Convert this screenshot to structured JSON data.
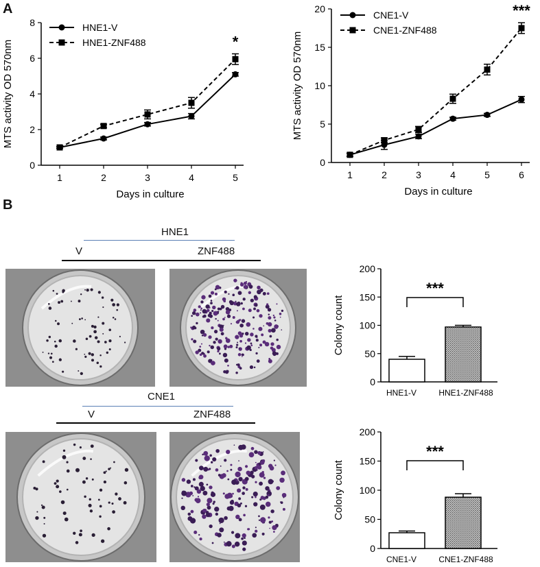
{
  "panels": {
    "a_label": "A",
    "b_label": "B"
  },
  "chart_data": [
    {
      "type": "line",
      "ylabel": "MTS activity OD 570nm",
      "xlabel": "Days in culture",
      "x": [
        1,
        2,
        3,
        4,
        5
      ],
      "xticks": [
        "1",
        "2",
        "3",
        "4",
        "5"
      ],
      "ylim": [
        0,
        8
      ],
      "yticks": [
        "0",
        "2",
        "4",
        "6",
        "8"
      ],
      "legend_position": "top-left",
      "series": [
        {
          "name": "HNE1-V",
          "marker": "circle",
          "dash": "solid",
          "values": [
            1.0,
            1.5,
            2.3,
            2.75,
            5.1
          ],
          "errors": [
            0.05,
            0.08,
            0.1,
            0.15,
            0.1
          ]
        },
        {
          "name": "HNE1-ZNF488",
          "marker": "square",
          "dash": "dashed",
          "values": [
            1.0,
            2.2,
            2.85,
            3.5,
            5.95
          ],
          "errors": [
            0.05,
            0.1,
            0.25,
            0.3,
            0.3
          ]
        }
      ],
      "significance": {
        "label": "*",
        "x": 5
      }
    },
    {
      "type": "line",
      "ylabel": "MTS activity OD 570nm",
      "xlabel": "Days in culture",
      "x": [
        1,
        2,
        3,
        4,
        5,
        6
      ],
      "xticks": [
        "1",
        "2",
        "3",
        "4",
        "5",
        "6"
      ],
      "ylim": [
        0,
        20
      ],
      "yticks": [
        "0",
        "5",
        "10",
        "15",
        "20"
      ],
      "legend_position": "top-left",
      "series": [
        {
          "name": "CNE1-V",
          "marker": "circle",
          "dash": "solid",
          "values": [
            1.0,
            2.3,
            3.4,
            5.7,
            6.2,
            8.2
          ],
          "errors": [
            0.2,
            0.6,
            0.3,
            0.2,
            0.2,
            0.4
          ]
        },
        {
          "name": "CNE1-ZNF488",
          "marker": "square",
          "dash": "dashed",
          "values": [
            1.0,
            2.9,
            4.3,
            8.3,
            12.1,
            17.5
          ],
          "errors": [
            0.2,
            0.3,
            0.4,
            0.6,
            0.7,
            0.7
          ]
        }
      ],
      "significance": {
        "label": "***",
        "x": 6
      }
    },
    {
      "type": "bar",
      "ylabel": "Colony count",
      "categories": [
        "HNE1-V",
        "HNE1-ZNF488"
      ],
      "values": [
        40,
        97
      ],
      "errors": [
        5,
        3
      ],
      "ylim": [
        0,
        200
      ],
      "yticks": [
        "0",
        "50",
        "100",
        "150",
        "200"
      ],
      "significance": "***"
    },
    {
      "type": "bar",
      "ylabel": "Colony count",
      "categories": [
        "CNE1-V",
        "CNE1-ZNF488"
      ],
      "values": [
        27,
        88
      ],
      "errors": [
        3,
        6
      ],
      "ylim": [
        0,
        200
      ],
      "yticks": [
        "0",
        "50",
        "100",
        "150",
        "200"
      ],
      "significance": "***"
    }
  ],
  "colony": {
    "hne1": {
      "title": "HNE1",
      "left_label": "V",
      "right_label": "ZNF488"
    },
    "cne1": {
      "title": "CNE1",
      "left_label": "V",
      "right_label": "ZNF488"
    }
  }
}
